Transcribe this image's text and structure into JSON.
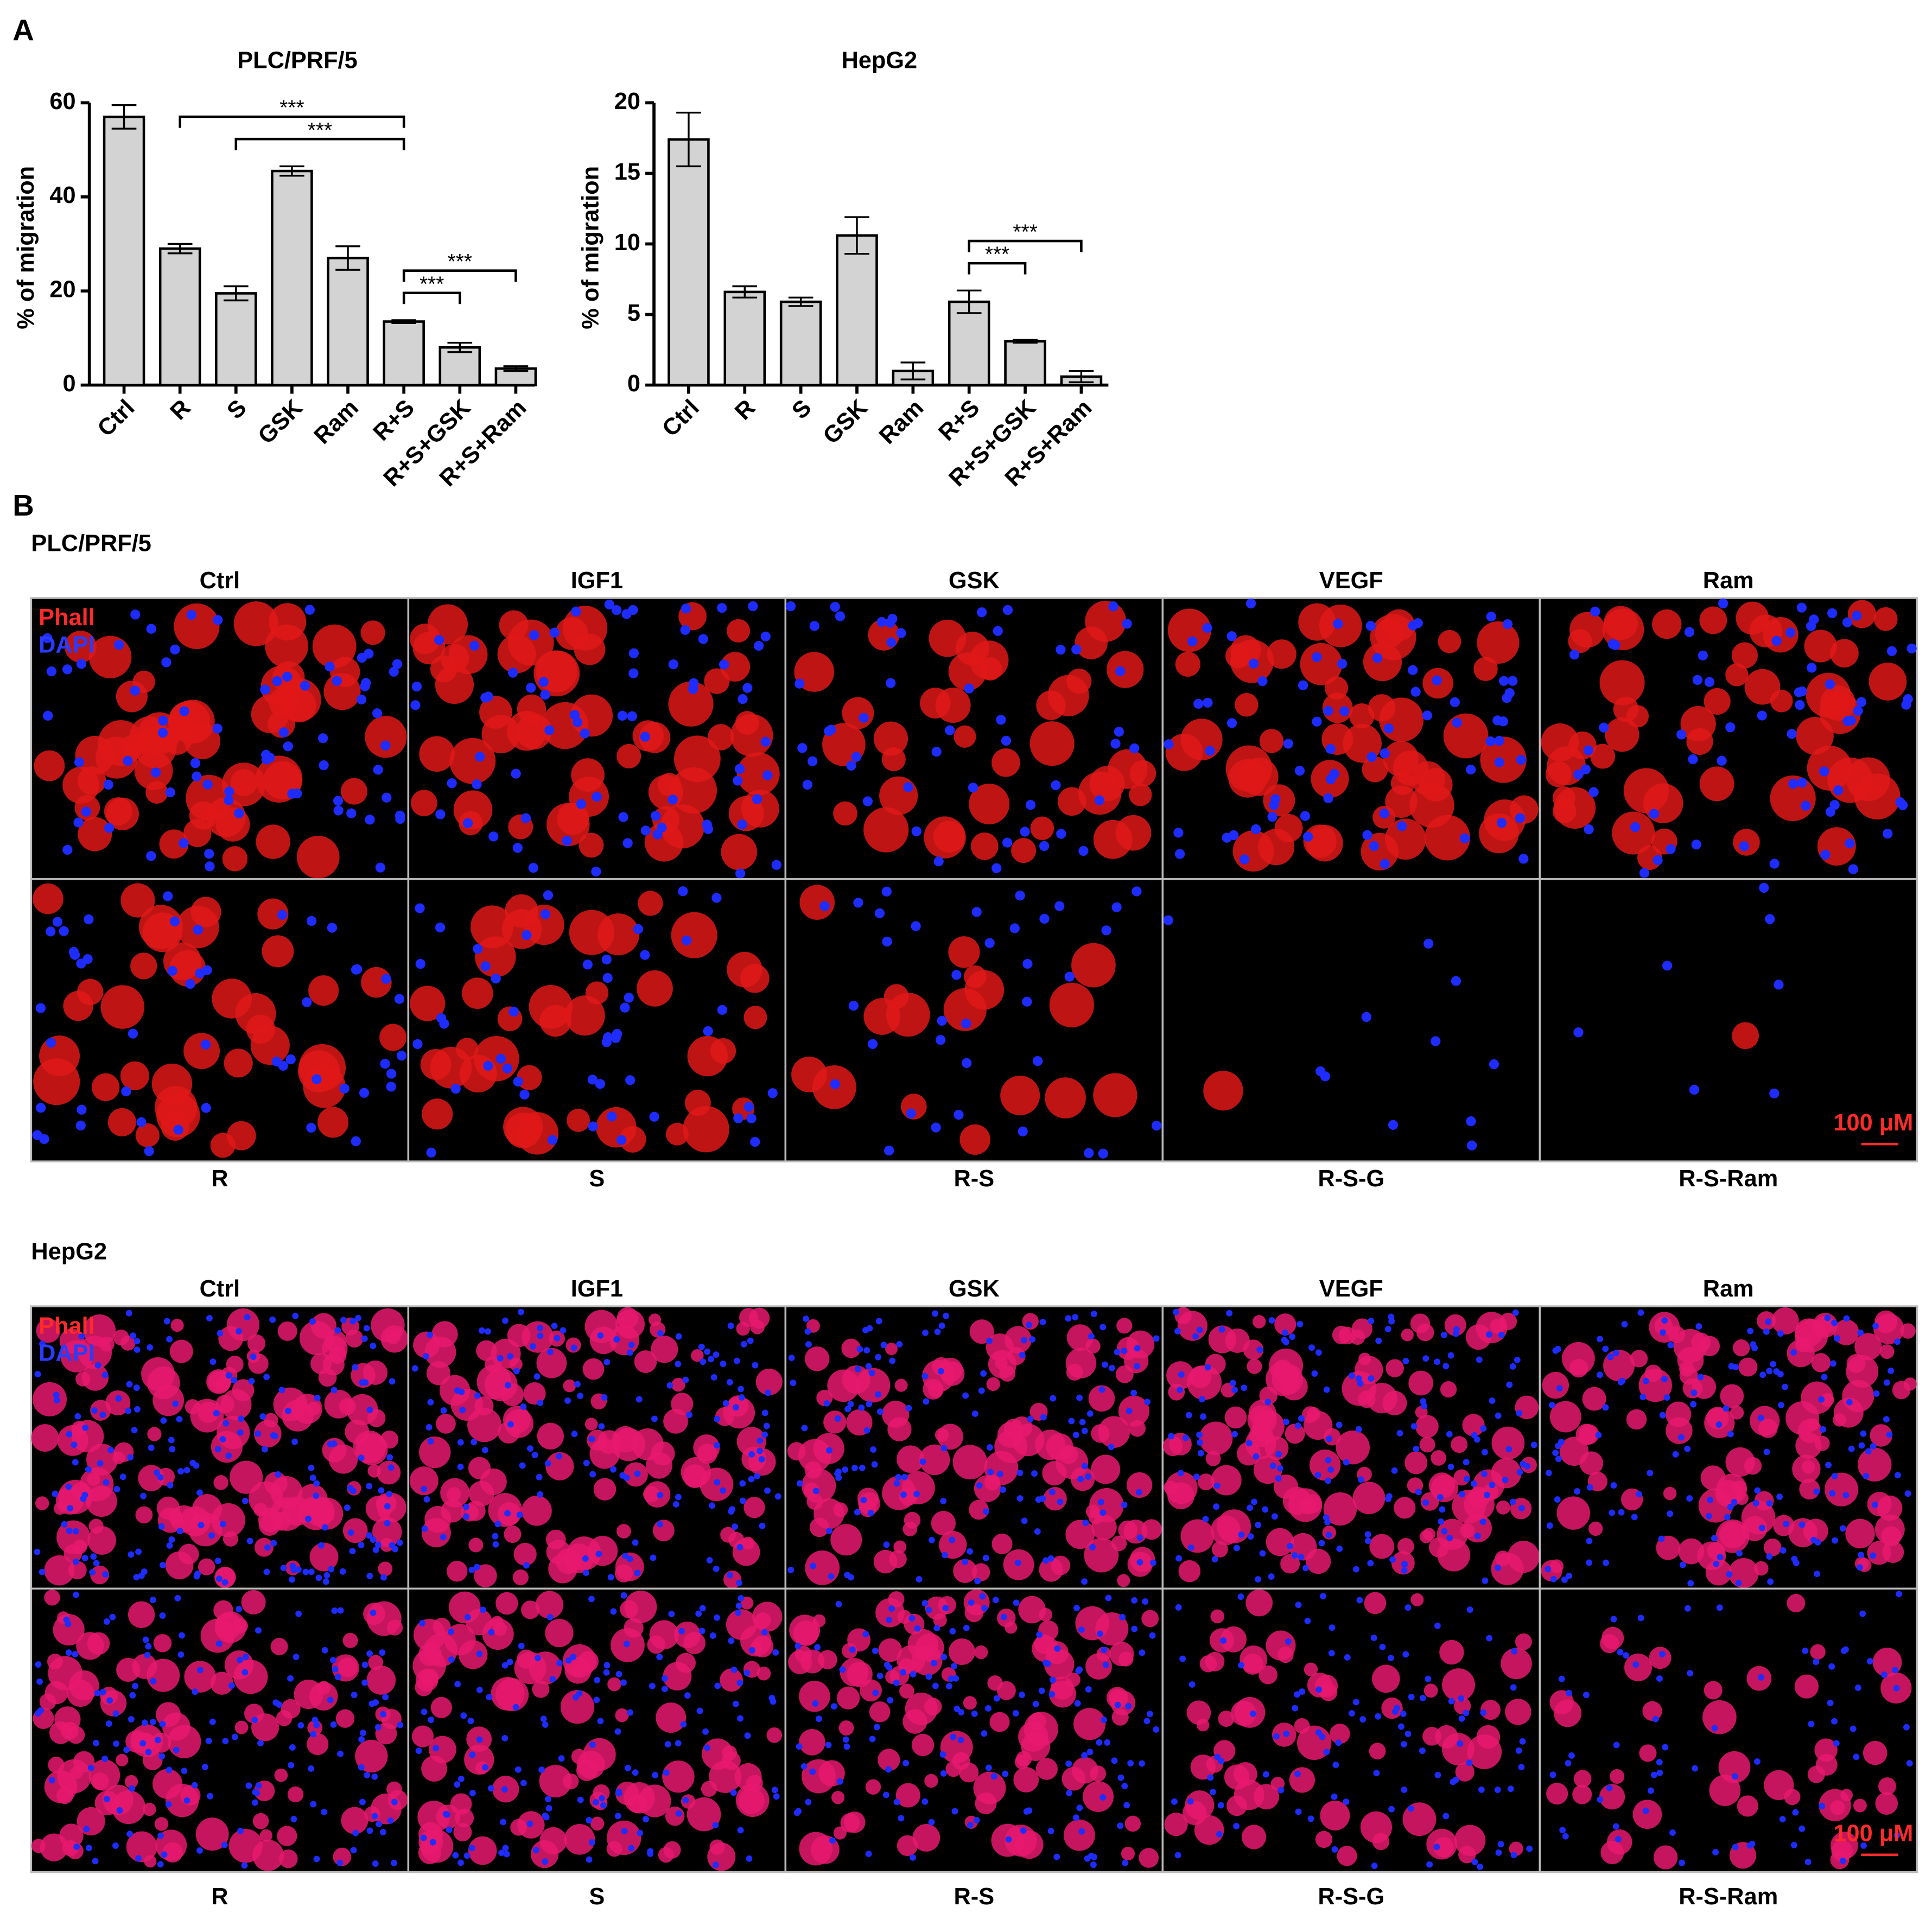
{
  "panel_labels": [
    "A",
    "B"
  ],
  "chart_data": [
    {
      "type": "bar",
      "title": "PLC/PRF/5",
      "y_label": "% of migration",
      "categories": [
        "Ctrl",
        "R",
        "S",
        "GSK",
        "Ram",
        "R+S",
        "R+S+GSK",
        "R+S+Ram"
      ],
      "values": [
        57,
        29,
        19.5,
        45.5,
        27,
        13.5,
        8,
        3.5
      ],
      "errors": [
        2.5,
        1,
        1.5,
        1,
        2.5,
        0.3,
        1,
        0.5
      ],
      "color": "#d3d3d3",
      "ylim": [
        0,
        60
      ],
      "yticks": [
        0,
        20,
        40,
        60
      ],
      "annotations": [
        {
          "between": [
            1,
            5
          ],
          "label": "***"
        },
        {
          "between": [
            2,
            5
          ],
          "label": "***"
        },
        {
          "between": [
            5,
            7
          ],
          "label": "***"
        },
        {
          "between": [
            5,
            6
          ],
          "label": "***"
        }
      ]
    },
    {
      "type": "bar",
      "title": "HepG2",
      "y_label": "% of migration",
      "categories": [
        "Ctrl",
        "R",
        "S",
        "GSK",
        "Ram",
        "R+S",
        "R+S+GSK",
        "R+S+Ram"
      ],
      "values": [
        17.4,
        6.6,
        5.9,
        10.6,
        1.0,
        5.9,
        3.1,
        0.6
      ],
      "errors": [
        1.9,
        0.4,
        0.3,
        1.3,
        0.6,
        0.8,
        0.1,
        0.4
      ],
      "color": "#d3d3d3",
      "ylim": [
        0,
        20
      ],
      "yticks": [
        0,
        5,
        10,
        15,
        20
      ],
      "annotations": [
        {
          "between": [
            5,
            7
          ],
          "label": "***"
        },
        {
          "between": [
            5,
            6
          ],
          "label": "***"
        }
      ]
    }
  ],
  "panels": [
    {
      "title": "PLC/PRF/5",
      "top_labels": [
        "Ctrl",
        "IGF1",
        "GSK",
        "VEGF",
        "Ram"
      ],
      "bottom_labels": [
        "R",
        "S",
        "R-S",
        "R-S-G",
        "R-S-Ram"
      ],
      "legend": [
        {
          "name": "Phall",
          "color": "#ff2a2a"
        },
        {
          "name": "DAPI",
          "color": "#2a3cff"
        }
      ],
      "scale_label": "100 μM"
    },
    {
      "title": "HepG2",
      "top_labels": [
        "Ctrl",
        "IGF1",
        "GSK",
        "VEGF",
        "Ram"
      ],
      "bottom_labels": [
        "R",
        "S",
        "R-S",
        "R-S-G",
        "R-S-Ram"
      ],
      "legend": [
        {
          "name": "Phall",
          "color": "#ff2a2a"
        },
        {
          "name": "DAPI",
          "color": "#2a3cff"
        }
      ],
      "scale_label": "100 μM"
    }
  ]
}
